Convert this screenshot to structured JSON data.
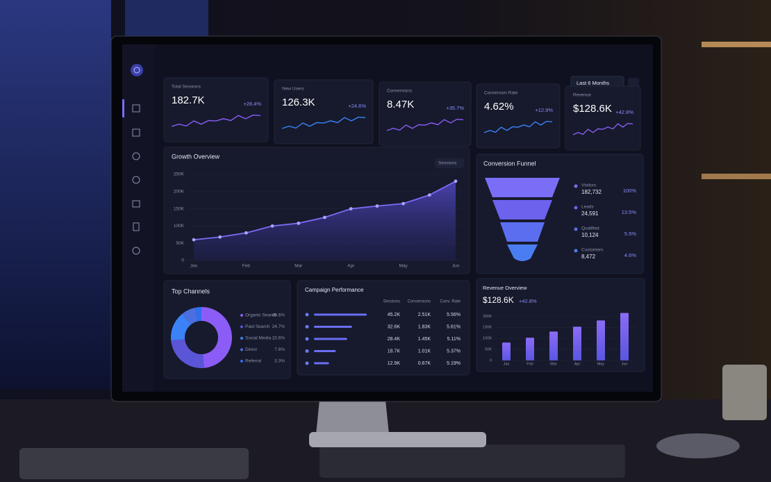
{
  "filter": "Last 6 Months",
  "kpis": [
    {
      "label": "Total Sessions",
      "value": "182.7K",
      "change": "+28.4%"
    },
    {
      "label": "New Users",
      "value": "126.3K",
      "change": "+24.6%"
    },
    {
      "label": "Conversions",
      "value": "8.47K",
      "change": "+35.7%"
    },
    {
      "label": "Conversion Rate",
      "value": "4.62%",
      "change": "+12.9%"
    },
    {
      "label": "Revenue",
      "value": "$128.6K",
      "change": "+42.8%"
    }
  ],
  "chart_data": [
    {
      "type": "line",
      "title": "Growth Overview",
      "selector": "Sessions",
      "categories": [
        "Jan",
        null,
        "Feb",
        null,
        "Mar",
        null,
        "Apr",
        null,
        "May",
        null,
        "Jun"
      ],
      "values": [
        60000,
        68000,
        80000,
        100000,
        108000,
        125000,
        150000,
        158000,
        165000,
        190000,
        230000
      ],
      "color": "#7c6cf5",
      "ylim": [
        0,
        250000
      ],
      "yticks": [
        0,
        {
          "value": 50000,
          "label": "50K"
        },
        {
          "value": 100000,
          "label": "100K"
        },
        {
          "value": 150000,
          "label": "150K"
        },
        {
          "value": 200000,
          "label": "200K"
        },
        {
          "value": 250000,
          "label": "250K"
        }
      ]
    },
    {
      "type": "funnel",
      "title": "Conversion Funnel",
      "categories": [
        "Visitors",
        "Leads",
        "Qualified",
        "Customers"
      ],
      "values": [
        182732,
        24591,
        10124,
        8472
      ],
      "value_labels": [
        "182,732",
        "24,591",
        "10,124",
        "8,472"
      ],
      "percent_labels": [
        "100%",
        "13.5%",
        "5.5%",
        "4.6%"
      ],
      "colors": [
        "#7b6ef6",
        "#6d62ee",
        "#5b6ef0",
        "#4b7df2"
      ]
    },
    {
      "type": "pie",
      "title": "Top Channels",
      "categories": [
        "Organic Search",
        "Paid Search",
        "Social Media",
        "Direct",
        "Referral"
      ],
      "values": [
        48.6,
        24.7,
        15.6,
        7.6,
        3.3
      ],
      "value_labels": [
        "48.6%",
        "24.7%",
        "15.6%",
        "7.6%",
        "3.3%"
      ],
      "colors": [
        "#8b5cf6",
        "#5b55d8",
        "#3b82f6",
        "#4b6fe0",
        "#2f6ff0"
      ]
    },
    {
      "type": "bar",
      "title": "Revenue Overview",
      "headline": "$128.6K",
      "change": "+42.8%",
      "categories": [
        "Jan",
        "Feb",
        "Mar",
        "Apr",
        "May",
        "Jun"
      ],
      "values": [
        81000,
        103000,
        131000,
        153000,
        181000,
        215000
      ],
      "color": "#7c6cf5",
      "ylim": [
        0,
        220000
      ],
      "yticks": [
        0,
        {
          "value": 50000,
          "label": "50K"
        },
        {
          "value": 100000,
          "label": "100K"
        },
        {
          "value": 150000,
          "label": "150K"
        },
        {
          "value": 200000,
          "label": "200K"
        }
      ]
    }
  ],
  "campaign": {
    "title": "Campaign Performance",
    "columns": [
      "Sessions",
      "Conversions",
      "Conv. Rate"
    ],
    "rows": [
      {
        "sessions": {
          "value": 45200,
          "label": "45.2K"
        },
        "conversions": "2.51K",
        "rate": "5.56%"
      },
      {
        "sessions": {
          "value": 32600,
          "label": "32.6K"
        },
        "conversions": "1.83K",
        "rate": "5.61%"
      },
      {
        "sessions": {
          "value": 28400,
          "label": "28.4K"
        },
        "conversions": "1.45K",
        "rate": "5.11%"
      },
      {
        "sessions": {
          "value": 18700,
          "label": "18.7K"
        },
        "conversions": "1.01K",
        "rate": "5.37%"
      },
      {
        "sessions": {
          "value": 12900,
          "label": "12.9K"
        },
        "conversions": "0.67K",
        "rate": "5.19%"
      }
    ]
  }
}
